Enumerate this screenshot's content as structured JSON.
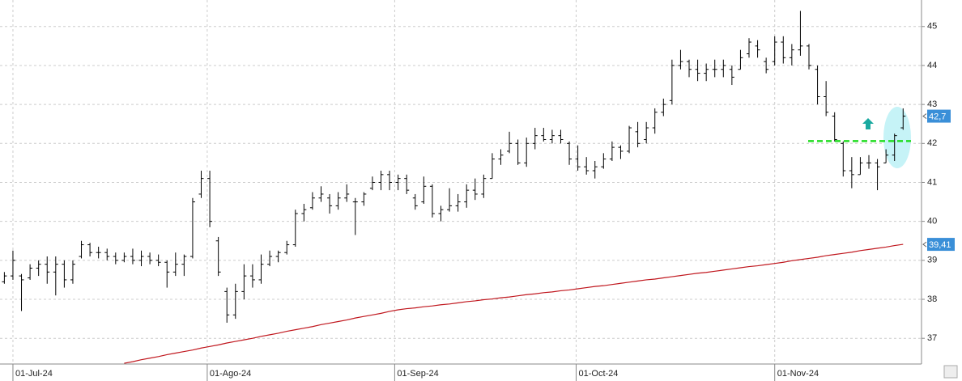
{
  "chart_data": {
    "type": "ohlc",
    "color": "#000000",
    "grid": true,
    "xlim": [
      -0.51,
      107.15
    ],
    "ylim": [
      36.34,
      45.68
    ],
    "yticks": [
      37,
      38,
      39,
      40,
      41,
      42,
      43,
      44,
      45
    ],
    "xticks": [
      {
        "value": 1,
        "label": "01-Jul-24"
      },
      {
        "value": 23.7,
        "label": "01-Ago-24"
      },
      {
        "value": 45.6,
        "label": "01-Sep-24"
      },
      {
        "value": 66.8,
        "label": "01-Oct-24"
      },
      {
        "value": 90,
        "label": "01-Nov-24"
      }
    ],
    "x": [
      0,
      1,
      2,
      3,
      4,
      5,
      6,
      7,
      8,
      9,
      10,
      11,
      12,
      13,
      14,
      15,
      16,
      17,
      18,
      19,
      20,
      21,
      22,
      23,
      24,
      25,
      26,
      27,
      28,
      29,
      30,
      31,
      32,
      33,
      34,
      35,
      36,
      37,
      38,
      39,
      40,
      41,
      42,
      43,
      44,
      45,
      46,
      47,
      48,
      49,
      50,
      51,
      52,
      53,
      54,
      55,
      56,
      57,
      58,
      59,
      60,
      61,
      62,
      63,
      64,
      65,
      66,
      67,
      68,
      69,
      70,
      71,
      72,
      73,
      74,
      75,
      76,
      77,
      78,
      79,
      80,
      81,
      82,
      83,
      84,
      85,
      86,
      87,
      88,
      89,
      90,
      91,
      92,
      93,
      94,
      95,
      96,
      97,
      98,
      99,
      100,
      101,
      102,
      103,
      104,
      105
    ],
    "open": [
      38.45,
      38.6,
      38.6,
      38.55,
      38.8,
      38.9,
      38.7,
      38.9,
      38.5,
      39.1,
      39.4,
      39.2,
      39.2,
      39.1,
      39.0,
      39.1,
      39.0,
      39.1,
      39.0,
      38.95,
      38.7,
      38.9,
      39.1,
      40.7,
      41.1,
      39.5,
      38.2,
      37.6,
      38.2,
      38.6,
      38.5,
      38.9,
      39.1,
      39.2,
      39.4,
      40.2,
      40.35,
      40.6,
      40.6,
      40.4,
      40.6,
      40.5,
      40.5,
      40.85,
      41.0,
      41.2,
      41.0,
      41.1,
      40.6,
      40.5,
      40.9,
      40.2,
      40.3,
      40.4,
      40.5,
      40.8,
      40.7,
      41.1,
      41.6,
      41.8,
      42.0,
      41.5,
      42.0,
      42.2,
      42.1,
      42.2,
      42.0,
      41.6,
      41.4,
      41.3,
      41.4,
      41.6,
      41.9,
      41.8,
      42.3,
      42.1,
      42.4,
      42.8,
      43.1,
      44.0,
      44.1,
      43.9,
      43.8,
      43.9,
      43.9,
      43.9,
      43.9,
      44.3,
      44.5,
      44.1,
      44.1,
      44.6,
      44.2,
      44.4,
      44.5,
      43.9,
      43.2,
      42.7,
      42.0,
      41.3,
      41.2,
      41.5,
      41.5,
      41.5,
      41.7,
      42.4
    ],
    "high": [
      38.7,
      39.25,
      38.65,
      38.9,
      39.0,
      39.1,
      39.1,
      39.0,
      39.0,
      39.5,
      39.45,
      39.35,
      39.3,
      39.2,
      39.2,
      39.3,
      39.25,
      39.2,
      39.15,
      39.0,
      39.2,
      39.15,
      40.6,
      41.3,
      41.3,
      39.6,
      38.3,
      38.4,
      38.9,
      38.9,
      39.15,
      39.25,
      39.25,
      39.5,
      40.3,
      40.45,
      40.75,
      40.9,
      40.7,
      40.75,
      40.95,
      40.6,
      40.75,
      41.15,
      41.3,
      41.3,
      41.2,
      41.2,
      40.7,
      41.15,
      40.95,
      40.4,
      40.85,
      40.7,
      40.95,
      41.1,
      41.2,
      41.75,
      41.85,
      42.3,
      42.1,
      42.15,
      42.4,
      42.4,
      42.35,
      42.35,
      42.05,
      41.95,
      41.65,
      41.55,
      41.75,
      42.05,
      41.95,
      42.45,
      42.55,
      42.55,
      42.9,
      43.15,
      44.15,
      44.4,
      44.15,
      44.15,
      44.05,
      44.15,
      44.15,
      44.0,
      44.4,
      44.7,
      44.65,
      44.2,
      44.75,
      44.75,
      44.55,
      45.4,
      44.55,
      44.0,
      43.6,
      42.8,
      42.05,
      41.65,
      41.65,
      41.7,
      41.6,
      41.85,
      42.25,
      42.9
    ],
    "low": [
      38.4,
      38.5,
      37.7,
      38.5,
      38.6,
      38.4,
      38.1,
      38.3,
      38.4,
      39.05,
      39.1,
      39.05,
      39.0,
      38.9,
      38.95,
      38.9,
      38.85,
      38.9,
      38.85,
      38.3,
      38.6,
      38.6,
      39.05,
      40.6,
      39.85,
      38.6,
      37.4,
      37.5,
      38.0,
      38.3,
      38.4,
      38.85,
      38.95,
      39.15,
      39.35,
      40.0,
      40.3,
      40.5,
      40.2,
      40.3,
      40.5,
      39.65,
      40.4,
      40.8,
      40.8,
      40.8,
      40.8,
      40.7,
      40.3,
      40.45,
      40.1,
      40.0,
      40.25,
      40.25,
      40.35,
      40.55,
      40.6,
      41.1,
      41.45,
      41.75,
      41.45,
      41.4,
      41.85,
      42.05,
      42.0,
      42.0,
      41.45,
      41.3,
      41.2,
      41.1,
      41.35,
      41.55,
      41.6,
      41.75,
      41.9,
      42.0,
      42.25,
      42.7,
      43.0,
      43.9,
      43.7,
      43.6,
      43.6,
      43.7,
      43.7,
      43.5,
      43.9,
      44.2,
      44.2,
      43.8,
      44.0,
      44.05,
      44.0,
      44.25,
      43.9,
      43.0,
      42.7,
      42.05,
      41.15,
      40.85,
      41.2,
      41.35,
      40.8,
      41.5,
      41.55,
      42.35
    ],
    "close": [
      38.6,
      39.0,
      38.5,
      38.8,
      38.9,
      38.7,
      38.9,
      38.5,
      38.9,
      39.4,
      39.2,
      39.2,
      39.1,
      39.0,
      39.1,
      39.0,
      39.1,
      39.0,
      38.95,
      38.7,
      38.9,
      39.1,
      40.5,
      41.1,
      40.0,
      38.7,
      37.6,
      38.2,
      38.6,
      38.5,
      38.9,
      39.1,
      39.2,
      39.4,
      40.2,
      40.3,
      40.6,
      40.7,
      40.4,
      40.6,
      40.7,
      40.5,
      40.7,
      41.0,
      41.2,
      41.0,
      41.1,
      40.8,
      40.4,
      40.9,
      40.2,
      40.3,
      40.4,
      40.5,
      40.8,
      40.7,
      41.1,
      41.6,
      41.7,
      42.0,
      41.5,
      42.0,
      42.2,
      42.1,
      42.2,
      42.1,
      41.6,
      41.4,
      41.3,
      41.4,
      41.6,
      41.9,
      41.8,
      42.4,
      42.0,
      42.4,
      42.8,
      43.0,
      44.0,
      44.1,
      43.9,
      43.8,
      43.9,
      43.9,
      44.0,
      43.7,
      44.2,
      44.6,
      44.4,
      43.9,
      44.6,
      44.2,
      44.4,
      44.5,
      44.0,
      43.2,
      42.8,
      42.1,
      41.3,
      41.2,
      41.5,
      41.5,
      41.4,
      41.7,
      42.2,
      42.7
    ],
    "last_label": "42,7",
    "label_color": "#3a8fd8",
    "ma": {
      "color": "#c0171e",
      "last_label": "39,41",
      "values": [
        null,
        null,
        null,
        null,
        null,
        null,
        null,
        null,
        null,
        null,
        null,
        null,
        null,
        null,
        36.36,
        36.4,
        36.45,
        36.49,
        36.53,
        36.58,
        36.62,
        36.66,
        36.7,
        36.75,
        36.79,
        36.83,
        36.88,
        36.92,
        36.96,
        37.0,
        37.05,
        37.09,
        37.13,
        37.18,
        37.22,
        37.26,
        37.3,
        37.35,
        37.39,
        37.43,
        37.47,
        37.52,
        37.56,
        37.6,
        37.64,
        37.69,
        37.73,
        37.76,
        37.78,
        37.81,
        37.83,
        37.86,
        37.88,
        37.91,
        37.94,
        37.96,
        37.99,
        38.01,
        38.04,
        38.06,
        38.09,
        38.12,
        38.14,
        38.17,
        38.19,
        38.22,
        38.24,
        38.27,
        38.3,
        38.33,
        38.35,
        38.38,
        38.41,
        38.44,
        38.47,
        38.5,
        38.52,
        38.55,
        38.58,
        38.61,
        38.64,
        38.67,
        38.69,
        38.72,
        38.75,
        38.78,
        38.81,
        38.84,
        38.86,
        38.89,
        38.92,
        38.95,
        38.99,
        39.02,
        39.05,
        39.08,
        39.12,
        39.15,
        39.18,
        39.21,
        39.25,
        39.28,
        39.31,
        39.34,
        39.38,
        39.41
      ]
    },
    "hline": {
      "value": 42.06,
      "color": "#22dd22"
    }
  }
}
